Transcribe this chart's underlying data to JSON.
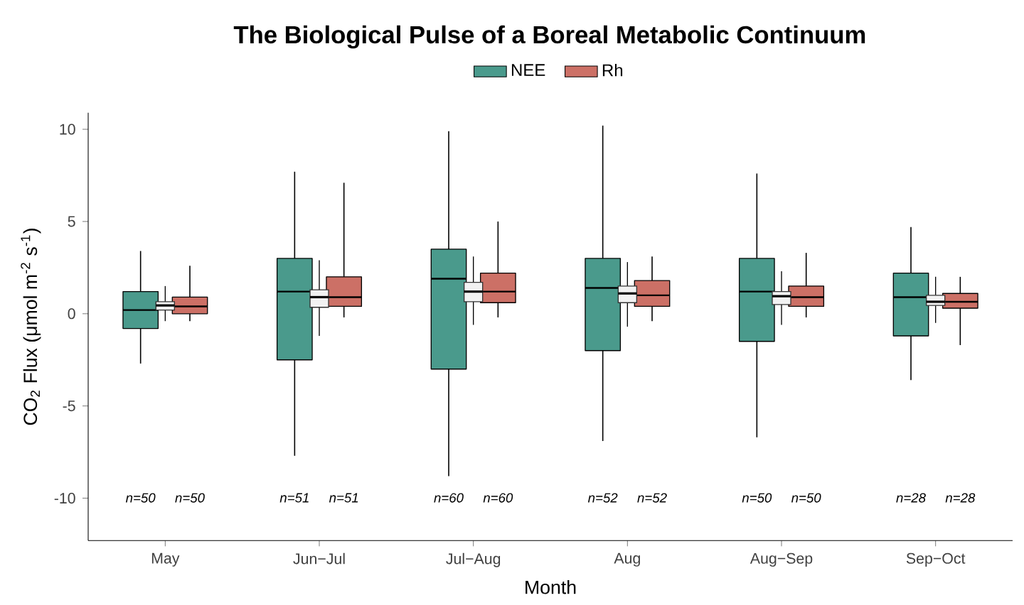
{
  "chart_data": {
    "type": "box",
    "title": "The Biological Pulse of a Boreal Metabolic Continuum",
    "xlabel": "Month",
    "ylabel": "CO$_{2}$ Flux (μmol m$^{-2}$ s$^{-1}$)",
    "categories": [
      "May",
      "Jun−Jul",
      "Jul−Aug",
      "Aug",
      "Aug−Sep",
      "Sep−Oct"
    ],
    "boxes": [
      {
        "low": -0.4,
        "q1": 0.2,
        "median": 0.45,
        "q3": 0.65,
        "high": 1.5
      },
      {
        "low": -1.2,
        "q1": 0.35,
        "median": 0.9,
        "q3": 1.3,
        "high": 2.9
      },
      {
        "low": -0.6,
        "q1": 0.65,
        "median": 1.2,
        "q3": 1.7,
        "high": 3.1
      },
      {
        "low": -0.7,
        "q1": 0.6,
        "median": 1.1,
        "q3": 1.5,
        "high": 2.8
      },
      {
        "low": -0.6,
        "q1": 0.5,
        "median": 0.95,
        "q3": 1.2,
        "high": 2.3
      },
      {
        "low": -0.5,
        "q1": 0.45,
        "median": 0.65,
        "q3": 1.0,
        "high": 2.0
      }
    ],
    "series": [
      {
        "name": "NEE",
        "color": "#4a9a8c",
        "boxes": [
          {
            "low": -2.7,
            "q1": -0.8,
            "median": 0.2,
            "q3": 1.2,
            "high": 3.4
          },
          {
            "low": -7.7,
            "q1": -2.5,
            "median": 1.2,
            "q3": 3.0,
            "high": 7.7
          },
          {
            "low": -8.8,
            "q1": -3.0,
            "median": 1.9,
            "q3": 3.5,
            "high": 9.9
          },
          {
            "low": -6.9,
            "q1": -2.0,
            "median": 1.4,
            "q3": 3.0,
            "high": 10.2
          },
          {
            "low": -6.7,
            "q1": -1.5,
            "median": 1.2,
            "q3": 3.0,
            "high": 7.6
          },
          {
            "low": -3.6,
            "q1": -1.2,
            "median": 0.9,
            "q3": 2.2,
            "high": 4.7
          }
        ]
      },
      {
        "name": "Rh",
        "color": "#cc7066",
        "boxes": [
          {
            "low": -0.4,
            "q1": 0.0,
            "median": 0.4,
            "q3": 0.9,
            "high": 2.6
          },
          {
            "low": -0.2,
            "q1": 0.4,
            "median": 0.9,
            "q3": 2.0,
            "high": 7.1
          },
          {
            "low": -0.2,
            "q1": 0.6,
            "median": 1.2,
            "q3": 2.2,
            "high": 5.0
          },
          {
            "low": -0.4,
            "q1": 0.4,
            "median": 1.0,
            "q3": 1.8,
            "high": 3.1
          },
          {
            "low": -0.2,
            "q1": 0.4,
            "median": 0.9,
            "q3": 1.5,
            "high": 3.3
          },
          {
            "low": -1.7,
            "q1": 0.3,
            "median": 0.65,
            "q3": 1.1,
            "high": 2.0
          }
        ]
      }
    ],
    "annotations": [
      "n=50",
      "n=50",
      "n=51",
      "n=51",
      "n=60",
      "n=60",
      "n=52",
      "n=52",
      "n=50",
      "n=50",
      "n=28",
      "n=28"
    ],
    "ylim": [
      -12.3,
      10.9
    ],
    "yticks": [
      -10,
      -5,
      0,
      5,
      10
    ],
    "grid": false,
    "legend": "top"
  }
}
